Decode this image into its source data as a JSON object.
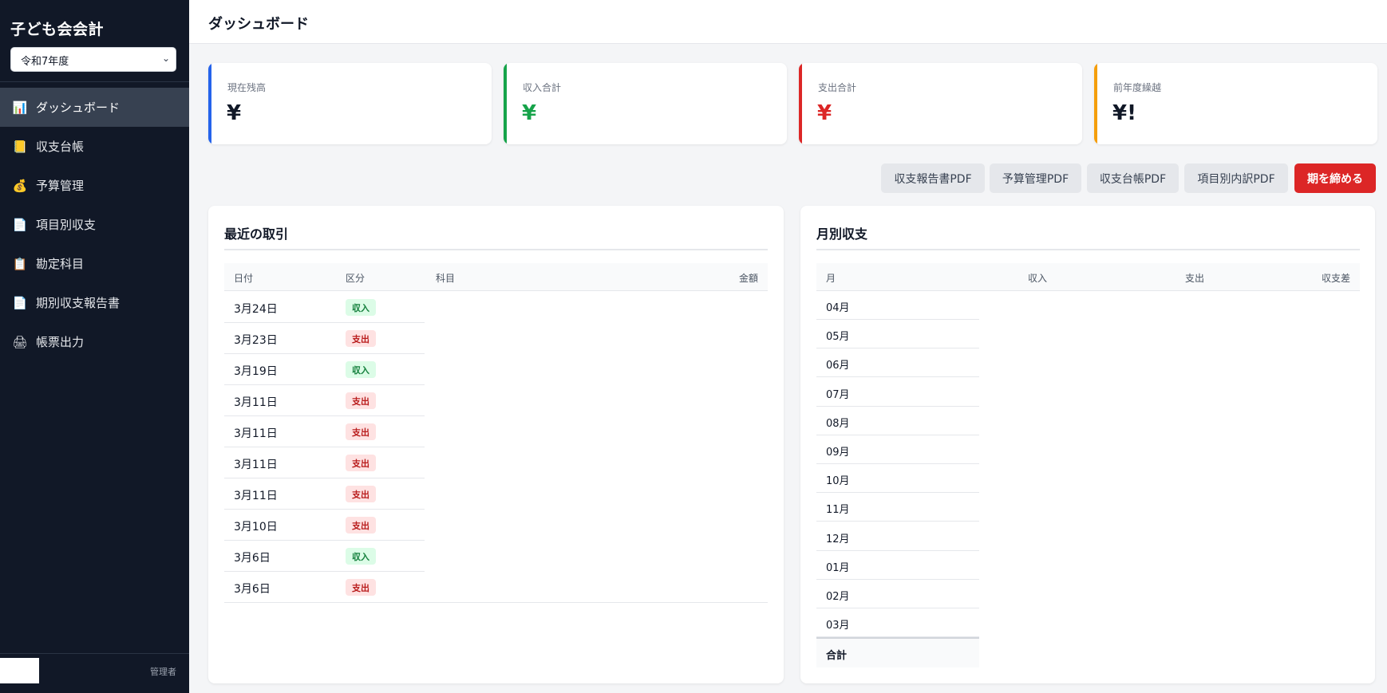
{
  "app": {
    "title": "子ども会会計"
  },
  "year_select": {
    "value": "令和7年度"
  },
  "nav": [
    {
      "label": "ダッシュボード",
      "icon": "bar-chart-icon",
      "glyph": "📊"
    },
    {
      "label": "収支台帳",
      "icon": "ledger-icon",
      "glyph": "📒"
    },
    {
      "label": "予算管理",
      "icon": "money-bag-icon",
      "glyph": "💰"
    },
    {
      "label": "項目別収支",
      "icon": "document-icon",
      "glyph": "📄"
    },
    {
      "label": "勘定科目",
      "icon": "clipboard-icon",
      "glyph": "📋"
    },
    {
      "label": "期別収支報告書",
      "icon": "report-icon",
      "glyph": "📄"
    },
    {
      "label": "帳票出力",
      "icon": "printer-icon",
      "glyph": "🖨"
    }
  ],
  "user": {
    "role": "管理者"
  },
  "header": {
    "title": "ダッシュボード"
  },
  "stats": [
    {
      "label": "現在残高",
      "value": "¥",
      "color": "#2563eb",
      "value_color": "#111827"
    },
    {
      "label": "収入合計",
      "value": "¥",
      "color": "#16a34a",
      "value_color": "#16a34a"
    },
    {
      "label": "支出合計",
      "value": "¥",
      "color": "#dc2626",
      "value_color": "#dc2626"
    },
    {
      "label": "前年度繰越",
      "value": "¥!",
      "color": "#f59e0b",
      "value_color": "#111827"
    }
  ],
  "actions": {
    "income_report_pdf": "収支報告書PDF",
    "budget_pdf": "予算管理PDF",
    "ledger_pdf": "収支台帳PDF",
    "category_pdf": "項目別内訳PDF",
    "close_period": "期を締める"
  },
  "recent": {
    "title": "最近の取引",
    "columns": {
      "date": "日付",
      "type": "区分",
      "account": "科目",
      "amount": "金額"
    },
    "rows": [
      {
        "date": "3月24日",
        "type": "収入",
        "kind": "inc"
      },
      {
        "date": "3月23日",
        "type": "支出",
        "kind": "exp"
      },
      {
        "date": "3月19日",
        "type": "収入",
        "kind": "inc"
      },
      {
        "date": "3月11日",
        "type": "支出",
        "kind": "exp"
      },
      {
        "date": "3月11日",
        "type": "支出",
        "kind": "exp"
      },
      {
        "date": "3月11日",
        "type": "支出",
        "kind": "exp"
      },
      {
        "date": "3月11日",
        "type": "支出",
        "kind": "exp"
      },
      {
        "date": "3月10日",
        "type": "支出",
        "kind": "exp"
      },
      {
        "date": "3月6日",
        "type": "収入",
        "kind": "inc"
      },
      {
        "date": "3月6日",
        "type": "支出",
        "kind": "exp"
      }
    ]
  },
  "monthly": {
    "title": "月別収支",
    "columns": {
      "month": "月",
      "income": "収入",
      "expense": "支出",
      "diff": "収支差"
    },
    "months": [
      "04月",
      "05月",
      "06月",
      "07月",
      "08月",
      "09月",
      "10月",
      "11月",
      "12月",
      "01月",
      "02月",
      "03月"
    ],
    "total_label": "合計"
  }
}
